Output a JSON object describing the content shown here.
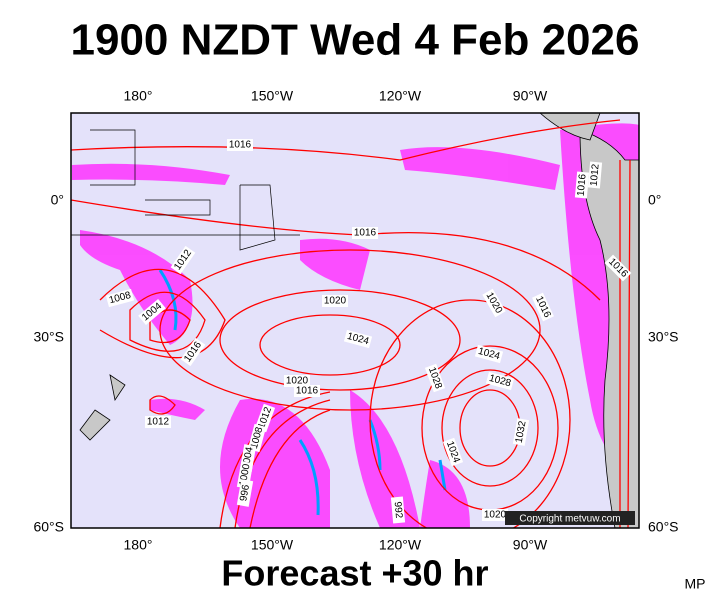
{
  "header": {
    "title": "1900 NZDT Wed 4 Feb 2026"
  },
  "axes": {
    "top_labels": [
      "180°",
      "150°W",
      "120°W",
      "90°W"
    ],
    "bottom_labels": [
      "180°",
      "150°W",
      "120°W",
      "90°W"
    ],
    "left_labels": [
      "0°",
      "30°S",
      "60°S"
    ],
    "right_labels": [
      "0°",
      "30°S",
      "60°S"
    ]
  },
  "isobar_labels": [
    "1016",
    "1016",
    "1012",
    "1008",
    "1004",
    "1016",
    "1020",
    "1024",
    "1020",
    "1016",
    "1024",
    "1028",
    "1028",
    "1020",
    "1016",
    "1012",
    "1012",
    "1008",
    "1004",
    "1000",
    "996",
    "1032",
    "1024",
    "992",
    "1016",
    "1012",
    "1016",
    "1020"
  ],
  "copyright": "Copyright metvuw.com",
  "footer": "Forecast +30 hr",
  "corner": "MP"
}
